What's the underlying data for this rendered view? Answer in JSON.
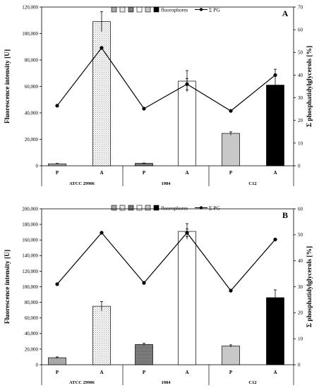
{
  "legend": {
    "fluorophores_label": "fluorophores",
    "pg_label": "Σ PG"
  },
  "chart_data": [
    {
      "panel": "A",
      "type": "bar",
      "ylabel": "Fluorescence intensity [U]",
      "y2label": "Σ phosphatidylglycerols [%]",
      "ylim": [
        0,
        120000
      ],
      "y_ticks": [
        0,
        20000,
        40000,
        60000,
        80000,
        100000,
        120000
      ],
      "y_tick_labels": [
        "0",
        "20,000",
        "40,000",
        "60,000",
        "80,000",
        "100,000",
        "120,000"
      ],
      "y2lim": [
        0,
        70
      ],
      "y2_ticks": [
        0,
        10,
        20,
        30,
        40,
        50,
        60,
        70
      ],
      "y2_tick_labels": [
        "0",
        "10",
        "20",
        "30",
        "40",
        "50",
        "60",
        "70"
      ],
      "groups": [
        "ATCC 29906",
        "1984",
        "C12"
      ],
      "categories": [
        "P",
        "A",
        "P",
        "A",
        "P",
        "A"
      ],
      "bar_fills": [
        "gray",
        "dots",
        "stripes",
        "white",
        "lightgray",
        "black"
      ],
      "fluorescence": [
        1500,
        109000,
        1800,
        64000,
        24500,
        61000
      ],
      "fluorescence_err": [
        300,
        7500,
        300,
        8000,
        1200,
        12000
      ],
      "pg_percent": [
        26.5,
        52,
        25.2,
        36,
        24.2,
        40
      ],
      "pg_err": [
        0,
        0,
        0,
        2.5,
        0,
        0
      ],
      "grid": false,
      "legend_position": "top"
    },
    {
      "panel": "B",
      "type": "bar",
      "ylabel": "Fluorescence intensity [U]",
      "y2label": "Σ phosphatidylglycerols [%]",
      "ylim": [
        0,
        200000
      ],
      "y_ticks": [
        0,
        20000,
        40000,
        60000,
        80000,
        100000,
        120000,
        140000,
        160000,
        180000,
        200000
      ],
      "y_tick_labels": [
        "0",
        "20,000",
        "40,000",
        "60,000",
        "80,000",
        "100,000",
        "120,000",
        "140,000",
        "160,000",
        "180,000",
        "200,000"
      ],
      "y2lim": [
        0,
        60
      ],
      "y2_ticks": [
        0,
        10,
        20,
        30,
        40,
        50,
        60
      ],
      "y2_tick_labels": [
        "0",
        "10",
        "20",
        "30",
        "40",
        "50",
        "60"
      ],
      "groups": [
        "ATCC 29906",
        "1984",
        "C12"
      ],
      "categories": [
        "P",
        "A",
        "P",
        "A",
        "P",
        "A"
      ],
      "bar_fills": [
        "gray",
        "dots",
        "stripes",
        "white",
        "lightgray",
        "black"
      ],
      "fluorescence": [
        9000,
        75000,
        26000,
        171000,
        24000,
        86000
      ],
      "fluorescence_err": [
        1000,
        6000,
        1500,
        10000,
        1500,
        10000
      ],
      "pg_percent": [
        31,
        50.8,
        31.5,
        50.8,
        28.5,
        48.2
      ],
      "pg_err": [
        0,
        0,
        0,
        1.5,
        0,
        0
      ],
      "grid": false,
      "legend_position": "top"
    }
  ]
}
